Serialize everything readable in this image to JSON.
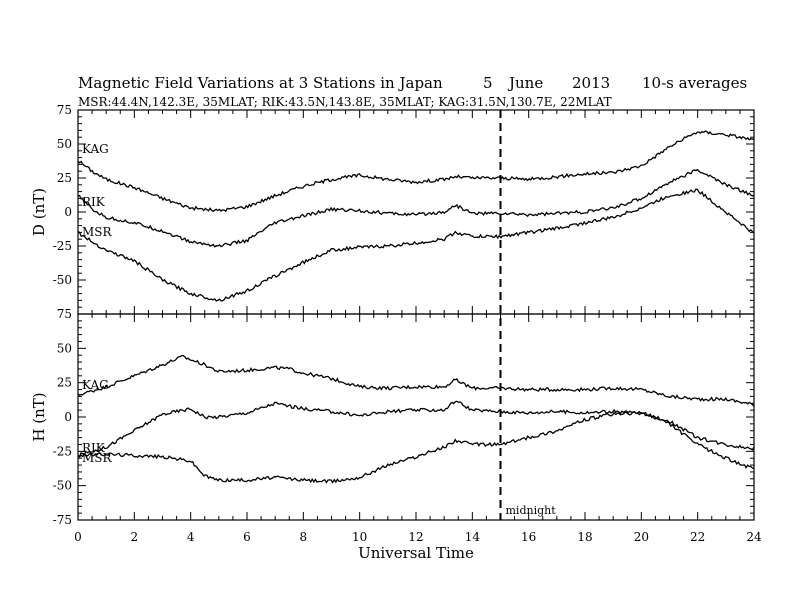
{
  "header": {
    "title": "Magnetic Field Variations at 3 Stations in Japan",
    "date_day": "5",
    "date_month": "June",
    "date_year": "2013",
    "averaging": "10-s averages",
    "stations": "MSR:44.4N,142.3E, 35MLAT;  RIK:43.5N,143.8E, 35MLAT;  KAG:31.5N,130.7E, 22MLAT"
  },
  "chart_data": [
    {
      "type": "line",
      "panel": "D",
      "ylabel": "D (nT)",
      "xlabel": "",
      "xlim": [
        0,
        24
      ],
      "ylim": [
        -75,
        75
      ],
      "yticks": [
        "75",
        "50",
        "25",
        "0",
        "-25",
        "-50",
        "-75"
      ],
      "series": [
        {
          "name": "KAG",
          "x": [
            0,
            0.5,
            1,
            2,
            3,
            4,
            5,
            6,
            7,
            8,
            9,
            10,
            11,
            12,
            13,
            13.4,
            14,
            15,
            16,
            17,
            18,
            19,
            20,
            21,
            22,
            23,
            24
          ],
          "values": [
            38,
            30,
            24,
            18,
            10,
            3,
            1,
            4,
            12,
            19,
            24,
            27,
            24,
            22,
            24,
            26,
            25,
            25,
            24,
            26,
            28,
            29,
            34,
            48,
            59,
            57,
            53
          ]
        },
        {
          "name": "RIK",
          "x": [
            0,
            0.5,
            1,
            2,
            3,
            4,
            5,
            6,
            7,
            8,
            9,
            10,
            11,
            12,
            13,
            13.4,
            14,
            15,
            16,
            17,
            18,
            19,
            20,
            21,
            22,
            23,
            24
          ],
          "values": [
            12,
            2,
            -4,
            -8,
            -14,
            -22,
            -25,
            -21,
            -8,
            -3,
            2,
            1,
            -1,
            -2,
            0,
            5,
            -1,
            -1,
            -2,
            -1,
            0,
            3,
            10,
            22,
            31,
            20,
            12
          ]
        },
        {
          "name": "MSR",
          "x": [
            0,
            0.5,
            1,
            2,
            3,
            4,
            5,
            6,
            7,
            8,
            9,
            10,
            11,
            12,
            13,
            13.4,
            14,
            15,
            16,
            17,
            18,
            19,
            20,
            21,
            22,
            23,
            24
          ],
          "values": [
            -15,
            -22,
            -28,
            -36,
            -50,
            -60,
            -65,
            -58,
            -47,
            -37,
            -28,
            -26,
            -25,
            -23,
            -20,
            -15,
            -18,
            -18,
            -15,
            -12,
            -8,
            -4,
            3,
            12,
            16,
            0,
            -16
          ]
        }
      ]
    },
    {
      "type": "line",
      "panel": "H",
      "ylabel": "H (nT)",
      "xlabel": "Universal Time",
      "xlim": [
        0,
        24
      ],
      "ylim": [
        -75,
        75
      ],
      "xticks": [
        "0",
        "2",
        "4",
        "6",
        "8",
        "10",
        "12",
        "14",
        "16",
        "18",
        "20",
        "22",
        "24"
      ],
      "yticks": [
        "75",
        "50",
        "25",
        "0",
        "-25",
        "-50",
        "-75"
      ],
      "series": [
        {
          "name": "KAG",
          "x": [
            0,
            1,
            2,
            3,
            3.7,
            4.5,
            5,
            6,
            7,
            7.5,
            8,
            9,
            10,
            11,
            12,
            13,
            13.4,
            14,
            15,
            16,
            17,
            18,
            19,
            20,
            21,
            22,
            23,
            24
          ],
          "values": [
            16,
            22,
            30,
            38,
            44,
            38,
            33,
            34,
            36,
            35,
            32,
            28,
            22,
            21,
            22,
            22,
            27,
            21,
            21,
            20,
            20,
            20,
            21,
            20,
            15,
            13,
            13,
            9
          ]
        },
        {
          "name": "RIK",
          "x": [
            0,
            1,
            2,
            3,
            4,
            4.5,
            5,
            6,
            7,
            7.5,
            8,
            9,
            10,
            11,
            12,
            13,
            13.4,
            14,
            15,
            16,
            17,
            18,
            19,
            20,
            21,
            22,
            23,
            24
          ],
          "values": [
            -28,
            -22,
            -10,
            2,
            6,
            0,
            0,
            3,
            10,
            8,
            6,
            4,
            1,
            4,
            5,
            5,
            12,
            5,
            4,
            3,
            4,
            3,
            4,
            3,
            -3,
            -15,
            -20,
            -23
          ]
        },
        {
          "name": "MSR",
          "x": [
            0,
            1,
            2,
            3,
            4,
            4.5,
            5,
            6,
            7,
            8,
            9,
            10,
            11,
            12,
            13,
            13.4,
            14,
            15,
            16,
            17,
            18,
            19,
            20,
            21,
            22,
            23,
            24
          ],
          "values": [
            -28,
            -27,
            -28,
            -29,
            -32,
            -43,
            -46,
            -46,
            -44,
            -46,
            -47,
            -44,
            -35,
            -29,
            -22,
            -17,
            -20,
            -20,
            -15,
            -10,
            -2,
            2,
            3,
            -5,
            -20,
            -30,
            -38
          ]
        }
      ]
    }
  ],
  "annotations": {
    "marker_label": "midnight",
    "marker_x": 15
  }
}
